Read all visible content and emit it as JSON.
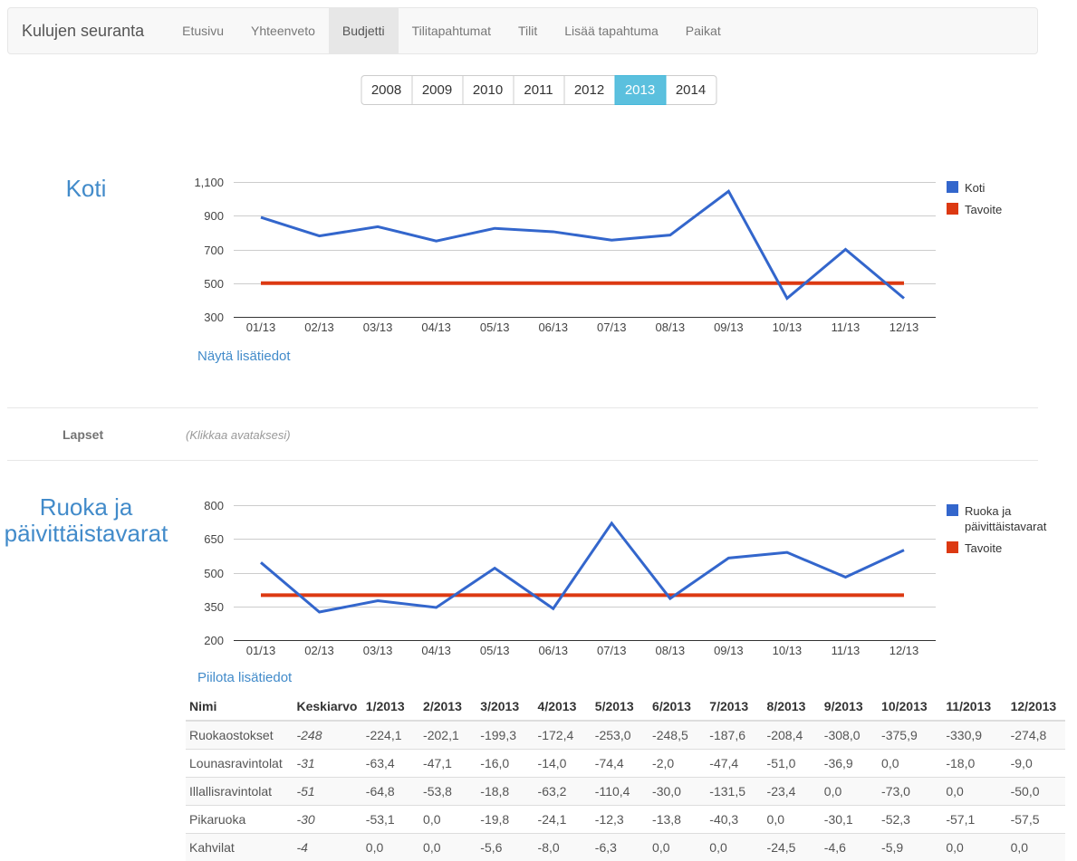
{
  "navbar": {
    "brand": "Kulujen seuranta",
    "items": [
      {
        "label": "Etusivu",
        "active": false
      },
      {
        "label": "Yhteenveto",
        "active": false
      },
      {
        "label": "Budjetti",
        "active": true
      },
      {
        "label": "Tilitapahtumat",
        "active": false
      },
      {
        "label": "Tilit",
        "active": false
      },
      {
        "label": "Lisää tapahtuma",
        "active": false
      },
      {
        "label": "Paikat",
        "active": false
      }
    ]
  },
  "year_selector": {
    "years": [
      "2008",
      "2009",
      "2010",
      "2011",
      "2012",
      "2013",
      "2014"
    ],
    "selected": "2013",
    "active_color": "#5bc0de"
  },
  "sections": {
    "koti": {
      "title": "Koti",
      "details_link": "Näytä lisätiedot"
    },
    "lapset": {
      "title": "Lapset",
      "hint": "(Klikkaa avataksesi)"
    },
    "ruoka": {
      "title": "Ruoka ja päivittäistavarat",
      "details_link": "Piilota lisätiedot"
    }
  },
  "colors": {
    "series_blue": "#3366cc",
    "series_red": "#dc3912",
    "accent_blue": "#428bca"
  },
  "chart_data": [
    {
      "type": "line",
      "title": "Koti",
      "categories": [
        "01/13",
        "02/13",
        "03/13",
        "04/13",
        "05/13",
        "06/13",
        "07/13",
        "08/13",
        "09/13",
        "10/13",
        "11/13",
        "12/13"
      ],
      "series": [
        {
          "name": "Koti",
          "color": "#3366cc",
          "values": [
            890,
            780,
            835,
            750,
            825,
            805,
            755,
            785,
            1045,
            410,
            700,
            410
          ]
        },
        {
          "name": "Tavoite",
          "color": "#dc3912",
          "values": [
            500,
            500,
            500,
            500,
            500,
            500,
            500,
            500,
            500,
            500,
            500,
            500
          ]
        }
      ],
      "ylim": [
        300,
        1100
      ],
      "y_ticks": [
        {
          "v": 300,
          "label": "300"
        },
        {
          "v": 500,
          "label": "500"
        },
        {
          "v": 700,
          "label": "700"
        },
        {
          "v": 900,
          "label": "900"
        },
        {
          "v": 1100,
          "label": "1,100"
        }
      ],
      "grid": "horizontal",
      "legend_position": "right"
    },
    {
      "type": "line",
      "title": "Ruoka ja päivittäistavarat",
      "categories": [
        "01/13",
        "02/13",
        "03/13",
        "04/13",
        "05/13",
        "06/13",
        "07/13",
        "08/13",
        "09/13",
        "10/13",
        "11/13",
        "12/13"
      ],
      "series": [
        {
          "name": "Ruoka ja päivittäistavarat",
          "color": "#3366cc",
          "values": [
            545,
            325,
            375,
            345,
            520,
            340,
            720,
            385,
            565,
            590,
            480,
            600
          ]
        },
        {
          "name": "Tavoite",
          "color": "#dc3912",
          "values": [
            400,
            400,
            400,
            400,
            400,
            400,
            400,
            400,
            400,
            400,
            400,
            400
          ]
        }
      ],
      "ylim": [
        200,
        800
      ],
      "y_ticks": [
        {
          "v": 200,
          "label": "200"
        },
        {
          "v": 350,
          "label": "350"
        },
        {
          "v": 500,
          "label": "500"
        },
        {
          "v": 650,
          "label": "650"
        },
        {
          "v": 800,
          "label": "800"
        }
      ],
      "grid": "horizontal",
      "legend_position": "right"
    }
  ],
  "table": {
    "columns": [
      "Nimi",
      "Keskiarvo",
      "1/2013",
      "2/2013",
      "3/2013",
      "4/2013",
      "5/2013",
      "6/2013",
      "7/2013",
      "8/2013",
      "9/2013",
      "10/2013",
      "11/2013",
      "12/2013"
    ],
    "rows": [
      {
        "name": "Ruokaostokset",
        "avg": "-248",
        "values": [
          "-224,1",
          "-202,1",
          "-199,3",
          "-172,4",
          "-253,0",
          "-248,5",
          "-187,6",
          "-208,4",
          "-308,0",
          "-375,9",
          "-330,9",
          "-274,8"
        ]
      },
      {
        "name": "Lounasravintolat",
        "avg": "-31",
        "values": [
          "-63,4",
          "-47,1",
          "-16,0",
          "-14,0",
          "-74,4",
          "-2,0",
          "-47,4",
          "-51,0",
          "-36,9",
          "0,0",
          "-18,0",
          "-9,0"
        ]
      },
      {
        "name": "Illallisravintolat",
        "avg": "-51",
        "values": [
          "-64,8",
          "-53,8",
          "-18,8",
          "-63,2",
          "-110,4",
          "-30,0",
          "-131,5",
          "-23,4",
          "0,0",
          "-73,0",
          "0,0",
          "-50,0"
        ]
      },
      {
        "name": "Pikaruoka",
        "avg": "-30",
        "values": [
          "-53,1",
          "0,0",
          "-19,8",
          "-24,1",
          "-12,3",
          "-13,8",
          "-40,3",
          "0,0",
          "-30,1",
          "-52,3",
          "-57,1",
          "-57,5"
        ]
      },
      {
        "name": "Kahvilat",
        "avg": "-4",
        "values": [
          "0,0",
          "0,0",
          "-5,6",
          "-8,0",
          "-6,3",
          "0,0",
          "0,0",
          "-24,5",
          "-4,6",
          "-5,9",
          "0,0",
          "0,0"
        ]
      }
    ]
  }
}
